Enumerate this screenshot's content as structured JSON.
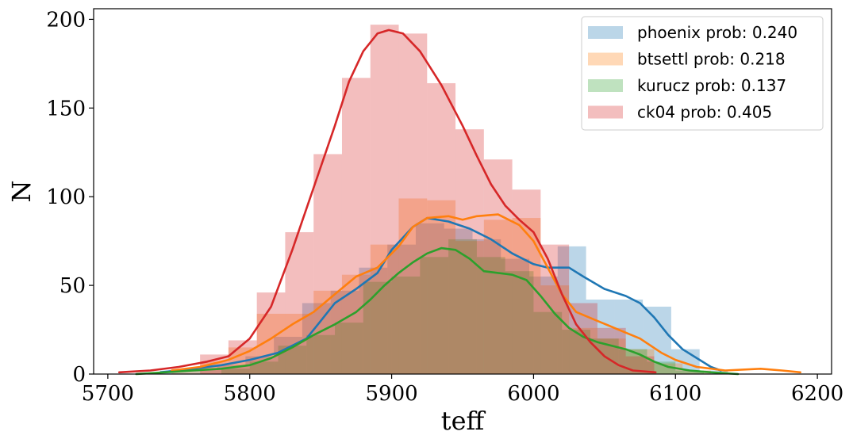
{
  "chart_data": {
    "type": "histogram-kde",
    "xlabel": "teff",
    "ylabel": "N",
    "xlim": [
      5690,
      6210
    ],
    "ylim": [
      0,
      206
    ],
    "xticks": [
      5700,
      5800,
      5900,
      6000,
      6100,
      6200
    ],
    "yticks": [
      0,
      50,
      100,
      150,
      200
    ],
    "grid": false,
    "legend_position": "top-right",
    "series": [
      {
        "name": "phoenix prob: 0.240",
        "color": "#1f77b4",
        "bins": [
          {
            "x0": 5737,
            "x1": 5757,
            "y": 2
          },
          {
            "x0": 5757,
            "x1": 5777,
            "y": 3
          },
          {
            "x0": 5777,
            "x1": 5797,
            "y": 5
          },
          {
            "x0": 5797,
            "x1": 5817,
            "y": 10
          },
          {
            "x0": 5817,
            "x1": 5837,
            "y": 21
          },
          {
            "x0": 5837,
            "x1": 5857,
            "y": 40
          },
          {
            "x0": 5857,
            "x1": 5877,
            "y": 47
          },
          {
            "x0": 5877,
            "x1": 5897,
            "y": 60
          },
          {
            "x0": 5897,
            "x1": 5917,
            "y": 73
          },
          {
            "x0": 5917,
            "x1": 5937,
            "y": 85
          },
          {
            "x0": 5937,
            "x1": 5957,
            "y": 82
          },
          {
            "x0": 5957,
            "x1": 5977,
            "y": 76
          },
          {
            "x0": 5977,
            "x1": 5997,
            "y": 65
          },
          {
            "x0": 5997,
            "x1": 6017,
            "y": 55
          },
          {
            "x0": 6017,
            "x1": 6037,
            "y": 72
          },
          {
            "x0": 6037,
            "x1": 6057,
            "y": 42
          },
          {
            "x0": 6057,
            "x1": 6077,
            "y": 42
          },
          {
            "x0": 6077,
            "x1": 6097,
            "y": 38
          },
          {
            "x0": 6097,
            "x1": 6117,
            "y": 14
          },
          {
            "x0": 6117,
            "x1": 6137,
            "y": 2
          }
        ],
        "kde": [
          [
            5737,
            1
          ],
          [
            5760,
            3
          ],
          [
            5780,
            5
          ],
          [
            5800,
            8
          ],
          [
            5820,
            12
          ],
          [
            5840,
            20
          ],
          [
            5850,
            30
          ],
          [
            5860,
            40
          ],
          [
            5875,
            48
          ],
          [
            5890,
            57
          ],
          [
            5900,
            70
          ],
          [
            5915,
            83
          ],
          [
            5925,
            88
          ],
          [
            5940,
            86
          ],
          [
            5955,
            82
          ],
          [
            5970,
            76
          ],
          [
            5985,
            68
          ],
          [
            6000,
            62
          ],
          [
            6010,
            60
          ],
          [
            6025,
            60
          ],
          [
            6035,
            55
          ],
          [
            6050,
            48
          ],
          [
            6065,
            44
          ],
          [
            6075,
            40
          ],
          [
            6085,
            32
          ],
          [
            6095,
            22
          ],
          [
            6105,
            14
          ],
          [
            6115,
            9
          ],
          [
            6125,
            4
          ],
          [
            6132,
            2
          ]
        ]
      },
      {
        "name": "btsettl prob: 0.218",
        "color": "#ff7f0e",
        "bins": [
          {
            "x0": 5745,
            "x1": 5765,
            "y": 3
          },
          {
            "x0": 5765,
            "x1": 5785,
            "y": 7
          },
          {
            "x0": 5785,
            "x1": 5805,
            "y": 15
          },
          {
            "x0": 5805,
            "x1": 5825,
            "y": 34
          },
          {
            "x0": 5825,
            "x1": 5845,
            "y": 34
          },
          {
            "x0": 5845,
            "x1": 5865,
            "y": 47
          },
          {
            "x0": 5865,
            "x1": 5885,
            "y": 56
          },
          {
            "x0": 5885,
            "x1": 5905,
            "y": 73
          },
          {
            "x0": 5905,
            "x1": 5925,
            "y": 99
          },
          {
            "x0": 5925,
            "x1": 5945,
            "y": 98
          },
          {
            "x0": 5945,
            "x1": 5965,
            "y": 75
          },
          {
            "x0": 5965,
            "x1": 5985,
            "y": 87
          },
          {
            "x0": 5985,
            "x1": 6005,
            "y": 88
          },
          {
            "x0": 6005,
            "x1": 6025,
            "y": 50
          },
          {
            "x0": 6025,
            "x1": 6045,
            "y": 26
          },
          {
            "x0": 6045,
            "x1": 6065,
            "y": 20
          },
          {
            "x0": 6065,
            "x1": 6085,
            "y": 14
          },
          {
            "x0": 6085,
            "x1": 6105,
            "y": 6
          },
          {
            "x0": 6105,
            "x1": 6125,
            "y": 2
          }
        ],
        "kde": [
          [
            5745,
            2
          ],
          [
            5765,
            4
          ],
          [
            5785,
            8
          ],
          [
            5800,
            13
          ],
          [
            5815,
            20
          ],
          [
            5830,
            28
          ],
          [
            5845,
            35
          ],
          [
            5860,
            45
          ],
          [
            5875,
            55
          ],
          [
            5890,
            60
          ],
          [
            5905,
            72
          ],
          [
            5915,
            83
          ],
          [
            5925,
            88
          ],
          [
            5940,
            89
          ],
          [
            5950,
            87
          ],
          [
            5960,
            89
          ],
          [
            5975,
            90
          ],
          [
            5990,
            84
          ],
          [
            6000,
            75
          ],
          [
            6010,
            60
          ],
          [
            6020,
            45
          ],
          [
            6030,
            35
          ],
          [
            6045,
            30
          ],
          [
            6060,
            25
          ],
          [
            6075,
            20
          ],
          [
            6090,
            12
          ],
          [
            6100,
            8
          ],
          [
            6115,
            4
          ],
          [
            6135,
            2
          ],
          [
            6160,
            3
          ],
          [
            6175,
            2
          ],
          [
            6188,
            1
          ]
        ]
      },
      {
        "name": "kurucz prob: 0.137",
        "color": "#2ca02c",
        "bins": [
          {
            "x0": 5780,
            "x1": 5800,
            "y": 3
          },
          {
            "x0": 5800,
            "x1": 5820,
            "y": 7
          },
          {
            "x0": 5820,
            "x1": 5840,
            "y": 16
          },
          {
            "x0": 5840,
            "x1": 5860,
            "y": 22
          },
          {
            "x0": 5860,
            "x1": 5880,
            "y": 29
          },
          {
            "x0": 5880,
            "x1": 5900,
            "y": 52
          },
          {
            "x0": 5900,
            "x1": 5920,
            "y": 55
          },
          {
            "x0": 5920,
            "x1": 5940,
            "y": 66
          },
          {
            "x0": 5940,
            "x1": 5960,
            "y": 76
          },
          {
            "x0": 5960,
            "x1": 5980,
            "y": 66
          },
          {
            "x0": 5980,
            "x1": 6000,
            "y": 58
          },
          {
            "x0": 6000,
            "x1": 6020,
            "y": 35
          },
          {
            "x0": 6020,
            "x1": 6040,
            "y": 25
          },
          {
            "x0": 6040,
            "x1": 6060,
            "y": 20
          },
          {
            "x0": 6060,
            "x1": 6080,
            "y": 14
          },
          {
            "x0": 6080,
            "x1": 6100,
            "y": 7
          },
          {
            "x0": 6100,
            "x1": 6120,
            "y": 2
          }
        ],
        "kde": [
          [
            5720,
            0
          ],
          [
            5740,
            1
          ],
          [
            5760,
            2
          ],
          [
            5780,
            3
          ],
          [
            5800,
            5
          ],
          [
            5815,
            9
          ],
          [
            5830,
            15
          ],
          [
            5845,
            22
          ],
          [
            5860,
            28
          ],
          [
            5875,
            35
          ],
          [
            5885,
            42
          ],
          [
            5895,
            50
          ],
          [
            5905,
            57
          ],
          [
            5915,
            63
          ],
          [
            5925,
            68
          ],
          [
            5935,
            71
          ],
          [
            5945,
            70
          ],
          [
            5955,
            65
          ],
          [
            5965,
            58
          ],
          [
            5975,
            57
          ],
          [
            5985,
            56
          ],
          [
            5995,
            53
          ],
          [
            6005,
            44
          ],
          [
            6015,
            34
          ],
          [
            6025,
            26
          ],
          [
            6035,
            21
          ],
          [
            6045,
            18
          ],
          [
            6055,
            16
          ],
          [
            6065,
            14
          ],
          [
            6075,
            11
          ],
          [
            6085,
            7
          ],
          [
            6095,
            4
          ],
          [
            6110,
            2
          ],
          [
            6125,
            1
          ],
          [
            6144,
            0
          ]
        ]
      },
      {
        "name": "ck04 prob: 0.405",
        "color": "#d62728",
        "bins": [
          {
            "x0": 5765,
            "x1": 5785,
            "y": 11
          },
          {
            "x0": 5785,
            "x1": 5805,
            "y": 19
          },
          {
            "x0": 5805,
            "x1": 5825,
            "y": 46
          },
          {
            "x0": 5825,
            "x1": 5845,
            "y": 80
          },
          {
            "x0": 5845,
            "x1": 5865,
            "y": 124
          },
          {
            "x0": 5865,
            "x1": 5885,
            "y": 167
          },
          {
            "x0": 5885,
            "x1": 5905,
            "y": 197
          },
          {
            "x0": 5905,
            "x1": 5925,
            "y": 192
          },
          {
            "x0": 5925,
            "x1": 5945,
            "y": 164
          },
          {
            "x0": 5945,
            "x1": 5965,
            "y": 138
          },
          {
            "x0": 5965,
            "x1": 5985,
            "y": 121
          },
          {
            "x0": 5985,
            "x1": 6005,
            "y": 104
          },
          {
            "x0": 6005,
            "x1": 6025,
            "y": 73
          },
          {
            "x0": 6025,
            "x1": 6045,
            "y": 40
          },
          {
            "x0": 6045,
            "x1": 6065,
            "y": 26
          },
          {
            "x0": 6065,
            "x1": 6085,
            "y": 10
          }
        ],
        "kde": [
          [
            5708,
            1
          ],
          [
            5730,
            2
          ],
          [
            5750,
            4
          ],
          [
            5770,
            7
          ],
          [
            5785,
            10
          ],
          [
            5800,
            20
          ],
          [
            5815,
            38
          ],
          [
            5830,
            70
          ],
          [
            5845,
            105
          ],
          [
            5860,
            140
          ],
          [
            5870,
            165
          ],
          [
            5880,
            182
          ],
          [
            5890,
            192
          ],
          [
            5898,
            194
          ],
          [
            5908,
            192
          ],
          [
            5920,
            182
          ],
          [
            5935,
            163
          ],
          [
            5950,
            140
          ],
          [
            5960,
            123
          ],
          [
            5970,
            107
          ],
          [
            5980,
            95
          ],
          [
            5990,
            87
          ],
          [
            6000,
            80
          ],
          [
            6010,
            65
          ],
          [
            6020,
            45
          ],
          [
            6030,
            28
          ],
          [
            6040,
            18
          ],
          [
            6050,
            10
          ],
          [
            6060,
            5
          ],
          [
            6070,
            2
          ],
          [
            6086,
            1
          ]
        ]
      }
    ]
  }
}
